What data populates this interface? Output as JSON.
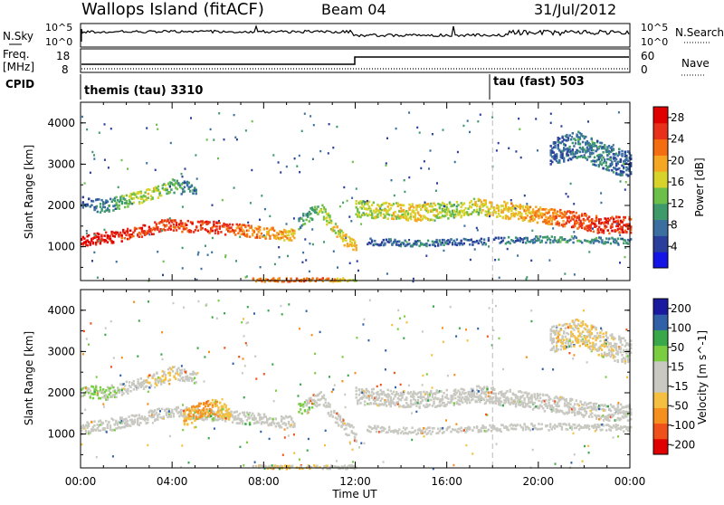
{
  "header": {
    "station": "Wallops Island (fitACF)",
    "beam": "Beam 04",
    "date": "31/Jul/2012"
  },
  "top_panels": {
    "nsky_label": "N.Sky",
    "nsky_ticks": [
      "10^5",
      "10^0"
    ],
    "nsearch_label": "N.Search",
    "nsearch_ticks": [
      "10^5",
      "10^0"
    ],
    "freq_label": "Freq.",
    "freq_unit": "[MHz]",
    "freq_ticks": [
      "18",
      "8"
    ],
    "nave_label": "Nave",
    "nave_ticks": [
      "60",
      "0"
    ],
    "cpid_label": "CPID",
    "cpid_entries": [
      {
        "label": "themis (tau) 3310",
        "start_hour": 0
      },
      {
        "label": "tau (fast) 503",
        "start_hour": 18
      }
    ]
  },
  "time_axis": {
    "label": "Time UT",
    "ticks": [
      "00:00",
      "04:00",
      "08:00",
      "12:00",
      "16:00",
      "20:00",
      "00:00"
    ]
  },
  "colors": {
    "power": [
      "#1414e6",
      "#2a3f9c",
      "#3a6fa0",
      "#3f9a6b",
      "#6cc04a",
      "#d8d32a",
      "#f5a623",
      "#f46d10",
      "#e8301a",
      "#e00000"
    ],
    "velocity": [
      "#e00000",
      "#f0501a",
      "#f5901e",
      "#f5c040",
      "#c9c9c2",
      "#c9c9c2",
      "#7acc40",
      "#38a84b",
      "#3060a8",
      "#1a1aa0"
    ]
  },
  "chart_data": [
    {
      "type": "heatmap",
      "panel": "power",
      "ylabel": "Slant Range [km]",
      "xlabel": "Time UT",
      "xlim": [
        0,
        24
      ],
      "ylim": [
        180,
        4500
      ],
      "yticks": [
        "4000",
        "3000",
        "2000",
        "1000"
      ],
      "colorbar_label": "Power [dB]",
      "colorbar_ticks": [
        "28",
        "24",
        "20",
        "16",
        "12",
        "8",
        "4"
      ],
      "colorbar_range": [
        0,
        30
      ],
      "vertical_marker_hour": 18,
      "bands": [
        {
          "t_start": 0.0,
          "t_end": 9.3,
          "range_center": [
            1150,
            1300,
            1550,
            1500,
            1400,
            1300
          ],
          "width_km": 180,
          "power": [
            28,
            26,
            24,
            26,
            22,
            18
          ]
        },
        {
          "t_start": 0.0,
          "t_end": 5.0,
          "range_center": [
            2100,
            2000,
            2150,
            2300,
            2500,
            2400
          ],
          "width_km": 200,
          "power": [
            6,
            8,
            14,
            16,
            12,
            8
          ]
        },
        {
          "t_start": 9.5,
          "t_end": 12.0,
          "range_center": [
            1600,
            1800,
            1900,
            1500,
            1200,
            1000
          ],
          "width_km": 200,
          "power": [
            10,
            12,
            14,
            16,
            18,
            18
          ]
        },
        {
          "t_start": 12.0,
          "t_end": 24.0,
          "range_center": [
            1950,
            1900,
            1850,
            1900,
            2000,
            1900,
            1800,
            1700,
            1550,
            1550
          ],
          "width_km": 250,
          "power": [
            14,
            16,
            18,
            14,
            16,
            18,
            20,
            24,
            26,
            26
          ]
        },
        {
          "t_start": 12.5,
          "t_end": 24.0,
          "range_center": [
            1150,
            1100,
            1150,
            1200,
            1200,
            1150
          ],
          "width_km": 100,
          "power": [
            6,
            8,
            6,
            8,
            10,
            8
          ]
        },
        {
          "t_start": 7.5,
          "t_end": 12.0,
          "range_center": [
            220,
            220,
            220,
            220
          ],
          "width_km": 60,
          "power": [
            20,
            24,
            22,
            16
          ]
        },
        {
          "t_start": 20.5,
          "t_end": 24.0,
          "range_center": [
            3300,
            3500,
            3200,
            3000
          ],
          "width_km": 400,
          "power": [
            6,
            8,
            8,
            6
          ]
        }
      ]
    },
    {
      "type": "heatmap",
      "panel": "velocity",
      "ylabel": "Slant Range [km]",
      "xlabel": "Time UT",
      "xlim": [
        0,
        24
      ],
      "ylim": [
        180,
        4500
      ],
      "yticks": [
        "4000",
        "3000",
        "2000",
        "1000"
      ],
      "colorbar_label": "Velocity [m s^-1]",
      "colorbar_ticks": [
        "200",
        "100",
        "50",
        "15",
        "-15",
        "-50",
        "-100",
        "-200"
      ],
      "colorbar_range": [
        -250,
        250
      ],
      "vertical_marker_hour": 18,
      "bands": [
        {
          "t_start": 0.0,
          "t_end": 9.3,
          "range_center": [
            1150,
            1300,
            1550,
            1500,
            1400,
            1300
          ],
          "width_km": 180,
          "velocity": [
            0,
            5,
            20,
            40,
            30,
            0
          ]
        },
        {
          "t_start": 4.5,
          "t_end": 6.5,
          "range_center": [
            1400,
            1600,
            1700,
            1500
          ],
          "width_km": 250,
          "velocity": [
            -80,
            -120,
            -100,
            -60
          ]
        },
        {
          "t_start": 0.0,
          "t_end": 5.0,
          "range_center": [
            2100,
            2000,
            2150,
            2300,
            2500,
            2400
          ],
          "width_km": 200,
          "velocity": [
            40,
            60,
            30,
            -40,
            -60,
            40
          ]
        },
        {
          "t_start": 9.5,
          "t_end": 12.0,
          "range_center": [
            1600,
            1800,
            1900,
            1500,
            1200,
            1000
          ],
          "width_km": 200,
          "velocity": [
            60,
            40,
            30,
            20,
            0,
            0
          ]
        },
        {
          "t_start": 12.0,
          "t_end": 24.0,
          "range_center": [
            1950,
            1900,
            1850,
            1900,
            2000,
            1900,
            1800,
            1700,
            1550,
            1550
          ],
          "width_km": 250,
          "velocity": [
            0,
            0,
            0,
            0,
            5,
            0,
            0,
            0,
            0,
            0
          ]
        },
        {
          "t_start": 12.5,
          "t_end": 24.0,
          "range_center": [
            1150,
            1100,
            1150,
            1200,
            1200,
            1150
          ],
          "width_km": 100,
          "velocity": [
            0,
            0,
            0,
            0,
            0,
            0
          ]
        },
        {
          "t_start": 7.5,
          "t_end": 12.0,
          "range_center": [
            220,
            220,
            220,
            220
          ],
          "width_km": 60,
          "velocity": [
            -40,
            -60,
            -40,
            -20
          ]
        },
        {
          "t_start": 20.5,
          "t_end": 24.0,
          "range_center": [
            3300,
            3500,
            3200,
            3000
          ],
          "width_km": 400,
          "velocity": [
            -30,
            -60,
            -50,
            0
          ]
        }
      ]
    }
  ]
}
